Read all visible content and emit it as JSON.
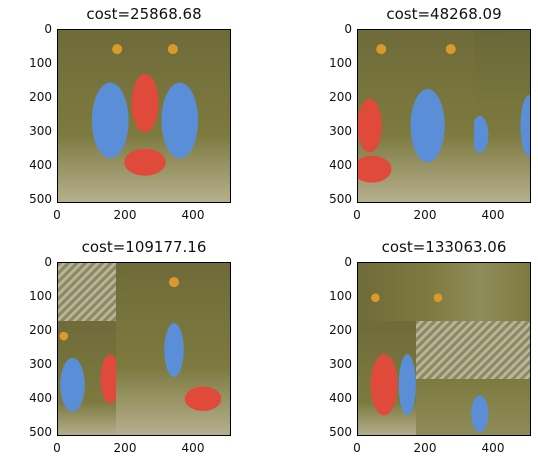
{
  "figure": {
    "panels": [
      {
        "title": "cost=25868.68",
        "xticks": [
          "0",
          "200",
          "400"
        ],
        "yticks": [
          "0",
          "100",
          "200",
          "300",
          "400",
          "500"
        ],
        "layout": "original"
      },
      {
        "title": "cost=48268.09",
        "xticks": [
          "0",
          "200",
          "400"
        ],
        "yticks": [
          "0",
          "100",
          "200",
          "300",
          "400",
          "500"
        ],
        "layout": "shifted"
      },
      {
        "title": "cost=109177.16",
        "xticks": [
          "0",
          "200",
          "400"
        ],
        "yticks": [
          "0",
          "100",
          "200",
          "300",
          "400",
          "500"
        ],
        "layout": "scrambled-a"
      },
      {
        "title": "cost=133063.06",
        "xticks": [
          "0",
          "200",
          "400"
        ],
        "yticks": [
          "0",
          "100",
          "200",
          "300",
          "400",
          "500"
        ],
        "layout": "scrambled-b"
      }
    ],
    "colors": {
      "fur": "#7d7a3f",
      "cheek": "#5a8fd8",
      "nose": "#e04a3a",
      "eye": "#d99a2a",
      "beard": "#c9c6a8"
    }
  }
}
